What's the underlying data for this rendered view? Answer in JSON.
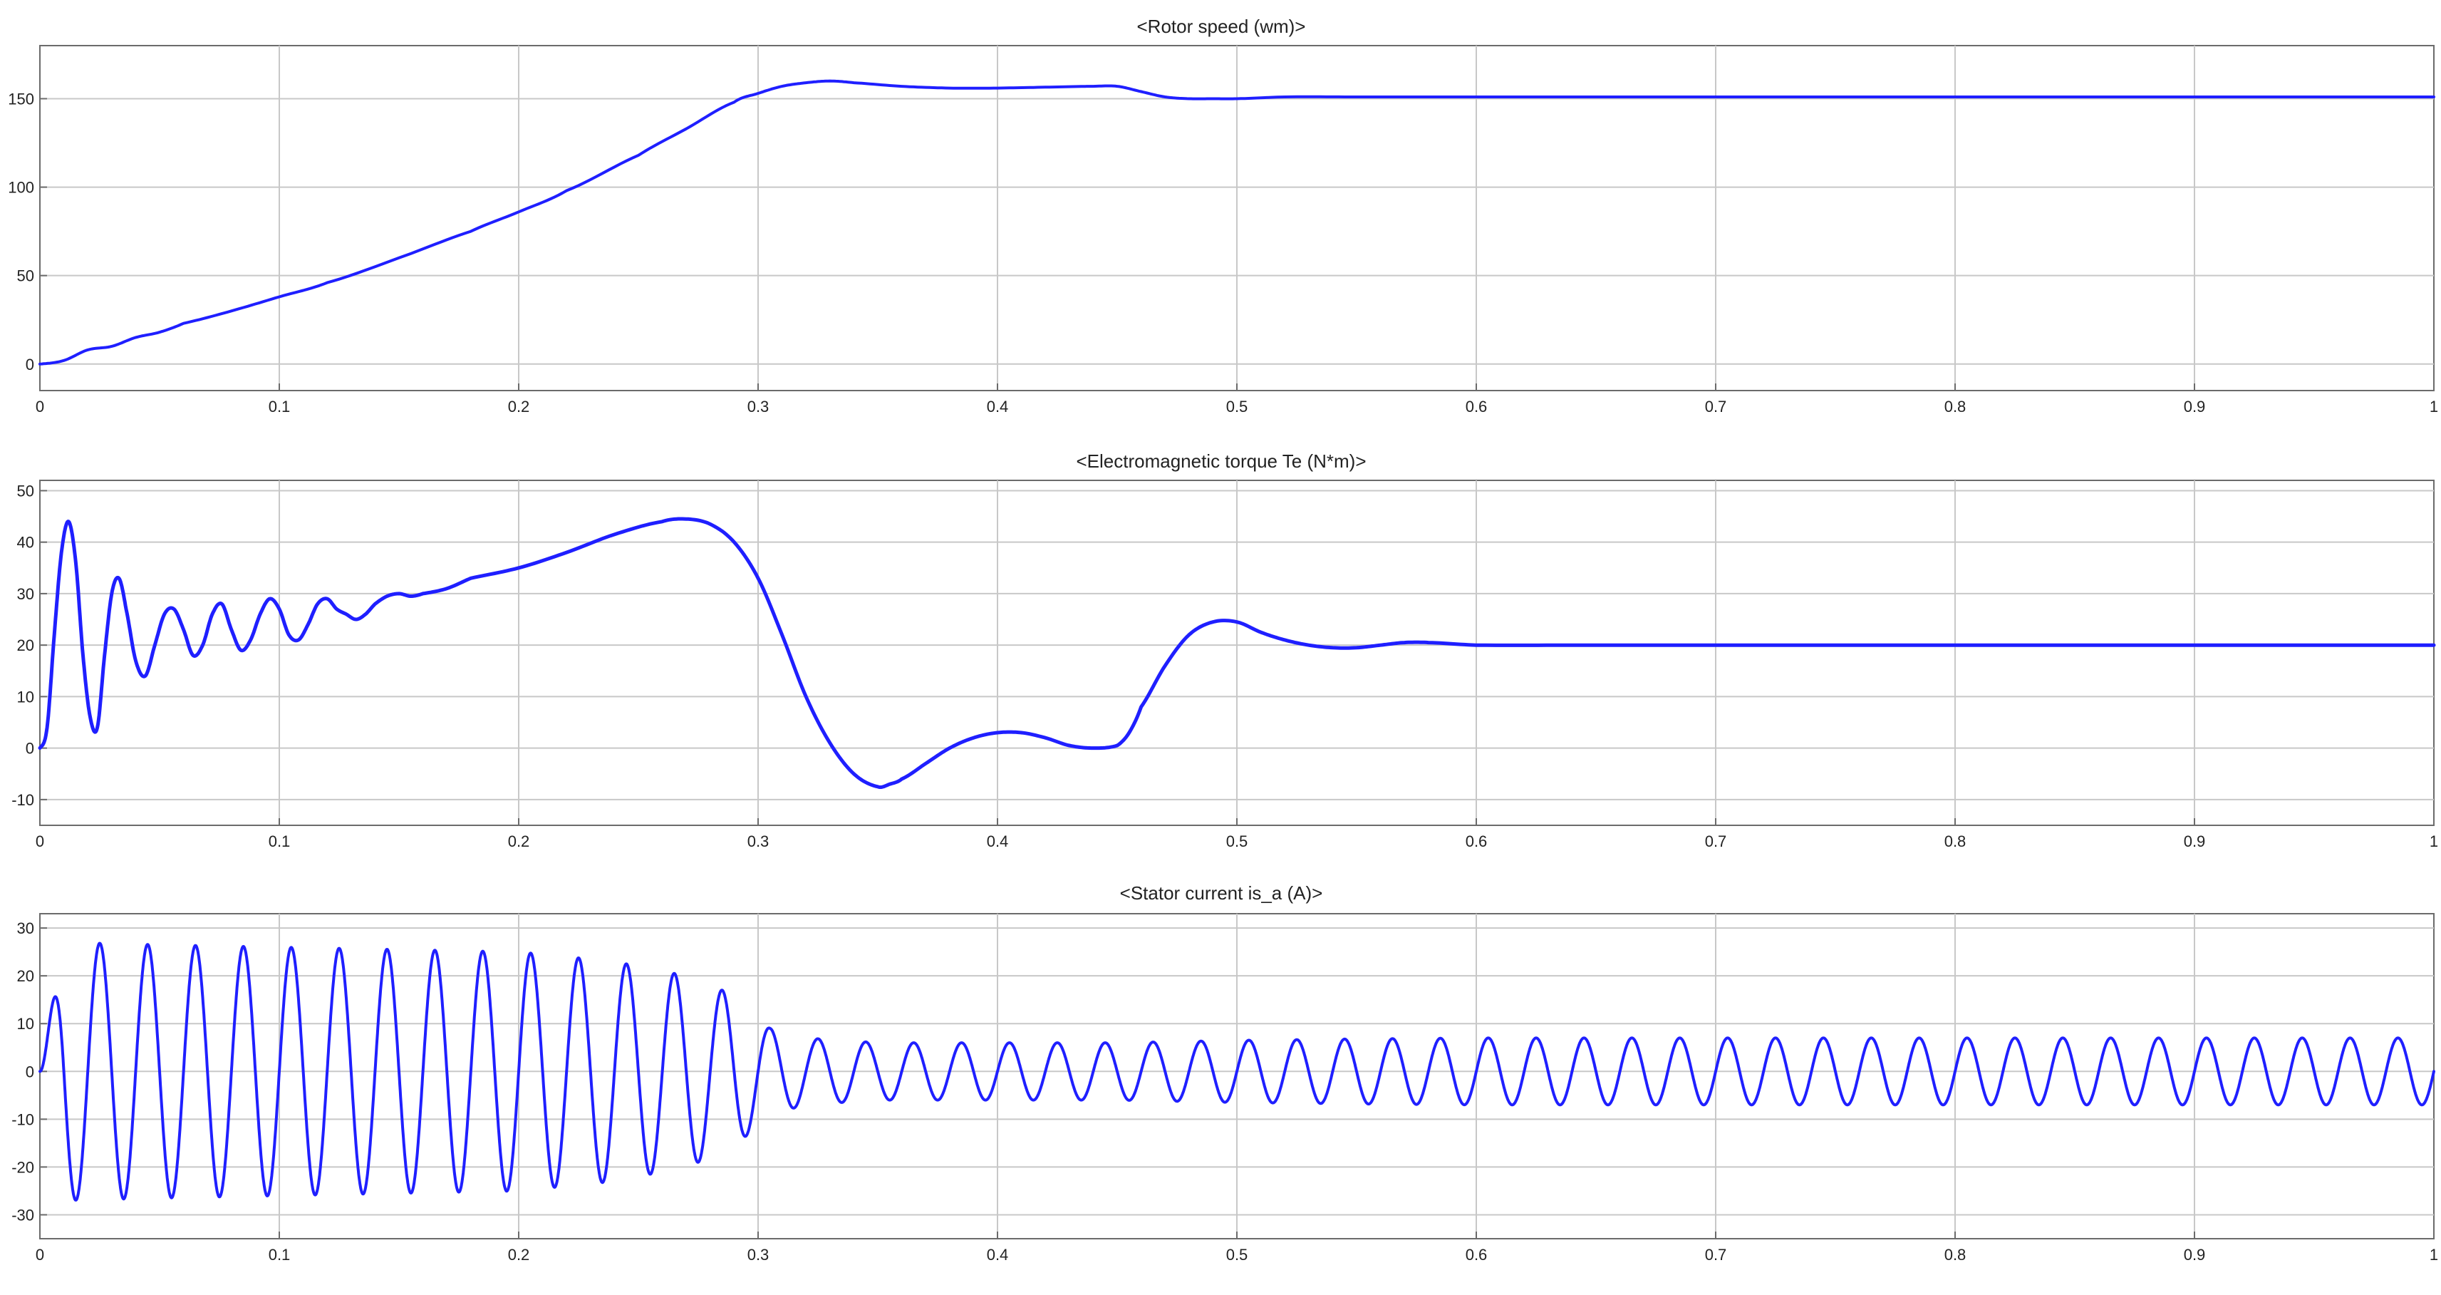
{
  "chart_data": [
    {
      "type": "line",
      "title": "<Rotor speed (wm)>",
      "xlabel": "",
      "ylabel": "",
      "xlim": [
        0,
        1
      ],
      "ylim": [
        -15,
        180
      ],
      "xticks": [
        0,
        0.1,
        0.2,
        0.3,
        0.4,
        0.5,
        0.6,
        0.7,
        0.8,
        0.9,
        1
      ],
      "xticklabels": [
        "0",
        "0.1",
        "0.2",
        "0.3",
        "0.4",
        "0.5",
        "0.6",
        "0.7",
        "0.8",
        "0.9",
        "1"
      ],
      "yticks": [
        0,
        50,
        100,
        150
      ],
      "yticklabels": [
        "0",
        "50",
        "100",
        "150"
      ],
      "grid": true,
      "line_color": "#1f1fff",
      "series": [
        {
          "x": [
            0,
            0.01,
            0.02,
            0.03,
            0.04,
            0.05,
            0.06,
            0.08,
            0.1,
            0.12,
            0.15,
            0.18,
            0.2,
            0.22,
            0.25,
            0.27,
            0.29,
            0.3,
            0.31,
            0.32,
            0.33,
            0.34,
            0.36,
            0.38,
            0.4,
            0.42,
            0.44,
            0.45,
            0.46,
            0.47,
            0.48,
            0.49,
            0.5,
            0.52,
            0.55,
            0.6,
            0.7,
            0.8,
            0.9,
            1.0
          ],
          "y": [
            0,
            2,
            8,
            10,
            15,
            18,
            23,
            30,
            38,
            46,
            60,
            75,
            86,
            98,
            118,
            133,
            148,
            153,
            157,
            159,
            160,
            159,
            157,
            156,
            156,
            156.5,
            157,
            157,
            154,
            151,
            150,
            150,
            150,
            151,
            151,
            151,
            151,
            151,
            151,
            151
          ]
        }
      ]
    },
    {
      "type": "line",
      "title": "<Electromagnetic torque Te (N*m)>",
      "xlabel": "",
      "ylabel": "",
      "xlim": [
        0,
        1
      ],
      "ylim": [
        -15,
        52
      ],
      "xticks": [
        0,
        0.1,
        0.2,
        0.3,
        0.4,
        0.5,
        0.6,
        0.7,
        0.8,
        0.9,
        1
      ],
      "xticklabels": [
        "0",
        "0.1",
        "0.2",
        "0.3",
        "0.4",
        "0.5",
        "0.6",
        "0.7",
        "0.8",
        "0.9",
        "1"
      ],
      "yticks": [
        -10,
        0,
        10,
        20,
        30,
        40,
        50
      ],
      "yticklabels": [
        "-10",
        "0",
        "10",
        "20",
        "30",
        "40",
        "50"
      ],
      "grid": true,
      "line_color": "#1f1fff",
      "series": [
        {
          "x": [
            0,
            0.003,
            0.006,
            0.009,
            0.012,
            0.015,
            0.018,
            0.021,
            0.024,
            0.027,
            0.03,
            0.033,
            0.036,
            0.04,
            0.044,
            0.048,
            0.052,
            0.056,
            0.06,
            0.064,
            0.068,
            0.072,
            0.076,
            0.08,
            0.084,
            0.088,
            0.092,
            0.096,
            0.1,
            0.104,
            0.108,
            0.112,
            0.116,
            0.12,
            0.124,
            0.128,
            0.132,
            0.136,
            0.14,
            0.145,
            0.15,
            0.155,
            0.16,
            0.17,
            0.18,
            0.2,
            0.22,
            0.24,
            0.26,
            0.27,
            0.28,
            0.29,
            0.3,
            0.31,
            0.32,
            0.33,
            0.34,
            0.35,
            0.355,
            0.36,
            0.37,
            0.38,
            0.39,
            0.4,
            0.41,
            0.42,
            0.43,
            0.44,
            0.45,
            0.455,
            0.46,
            0.47,
            0.48,
            0.49,
            0.5,
            0.51,
            0.52,
            0.53,
            0.54,
            0.55,
            0.56,
            0.57,
            0.58,
            0.6,
            0.65,
            0.7,
            0.8,
            0.9,
            1.0
          ],
          "y": [
            0,
            4,
            22,
            38,
            44,
            36,
            18,
            6,
            4,
            18,
            30,
            33,
            27,
            17,
            14,
            20,
            26,
            27,
            23,
            18,
            20,
            26,
            28,
            23,
            19,
            21,
            26,
            29,
            27,
            22,
            21,
            24,
            28,
            29,
            27,
            26,
            25,
            26,
            28,
            29.5,
            30,
            29.5,
            30,
            31,
            33,
            35,
            38,
            41.5,
            44,
            44.5,
            43.5,
            40,
            33,
            22,
            10,
            1,
            -5,
            -7.5,
            -7,
            -6,
            -3,
            0,
            2,
            3,
            3,
            2,
            0.5,
            0,
            0.5,
            3,
            8,
            16,
            22,
            24.5,
            24.5,
            22.5,
            21,
            20,
            19.5,
            19.5,
            20,
            20.5,
            20.5,
            20,
            20,
            20,
            20,
            20,
            20
          ]
        }
      ]
    },
    {
      "type": "line",
      "title": "<Stator current is_a (A)>",
      "xlabel": "",
      "ylabel": "",
      "xlim": [
        0,
        1
      ],
      "ylim": [
        -35,
        33
      ],
      "xticks": [
        0,
        0.1,
        0.2,
        0.3,
        0.4,
        0.5,
        0.6,
        0.7,
        0.8,
        0.9,
        1
      ],
      "xticklabels": [
        "0",
        "0.1",
        "0.2",
        "0.3",
        "0.4",
        "0.5",
        "0.6",
        "0.7",
        "0.8",
        "0.9",
        "1"
      ],
      "yticks": [
        -30,
        -20,
        -10,
        0,
        10,
        20,
        30
      ],
      "yticklabels": [
        "-30",
        "-20",
        "-10",
        "0",
        "10",
        "20",
        "30"
      ],
      "grid": true,
      "line_color": "#1f1fff",
      "series": [
        {
          "frequency_hz": 50,
          "amplitude_envelope": {
            "t": [
              0,
              0.01,
              0.05,
              0.1,
              0.15,
              0.2,
              0.24,
              0.27,
              0.29,
              0.3,
              0.305,
              0.32,
              0.35,
              0.4,
              0.45,
              0.5,
              0.55,
              0.6,
              0.7,
              0.8,
              0.9,
              1.0
            ],
            "a": [
              0,
              27,
              26.5,
              26,
              25.5,
              25,
              23,
              20,
              16,
              11,
              9,
              7,
              6,
              6,
              6,
              6.5,
              6.8,
              7,
              7,
              7,
              7,
              7
            ]
          }
        }
      ]
    }
  ]
}
